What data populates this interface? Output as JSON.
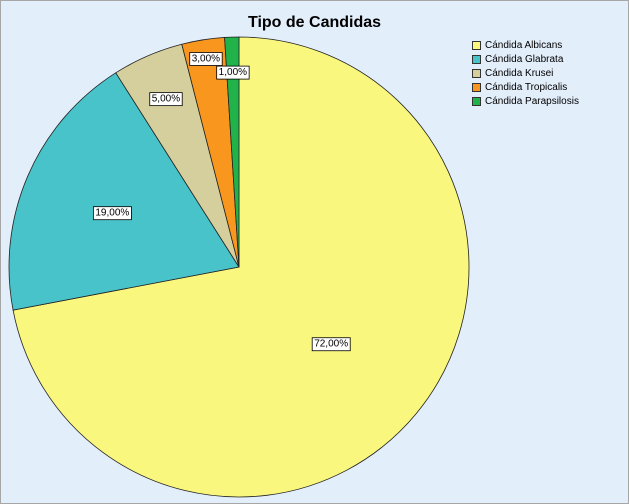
{
  "chart_data": {
    "type": "pie",
    "title": "Tipo de Candidas",
    "categories": [
      "Cándida Albicans",
      "Cándida Glabrata",
      "Cándida Krusei",
      "Cándida Tropicalis",
      "Cándida Parapsilosis"
    ],
    "values": [
      72.0,
      19.0,
      5.0,
      3.0,
      1.0
    ],
    "data_labels": [
      "72,00%",
      "19,00%",
      "5,00%",
      "3,00%",
      "1,00%"
    ],
    "colors": [
      "#f9f77e",
      "#48c3c9",
      "#d5cf9d",
      "#f8961e",
      "#21b34a"
    ],
    "legend_position": "top-right",
    "start_angle_deg": 0,
    "direction": "clockwise"
  }
}
